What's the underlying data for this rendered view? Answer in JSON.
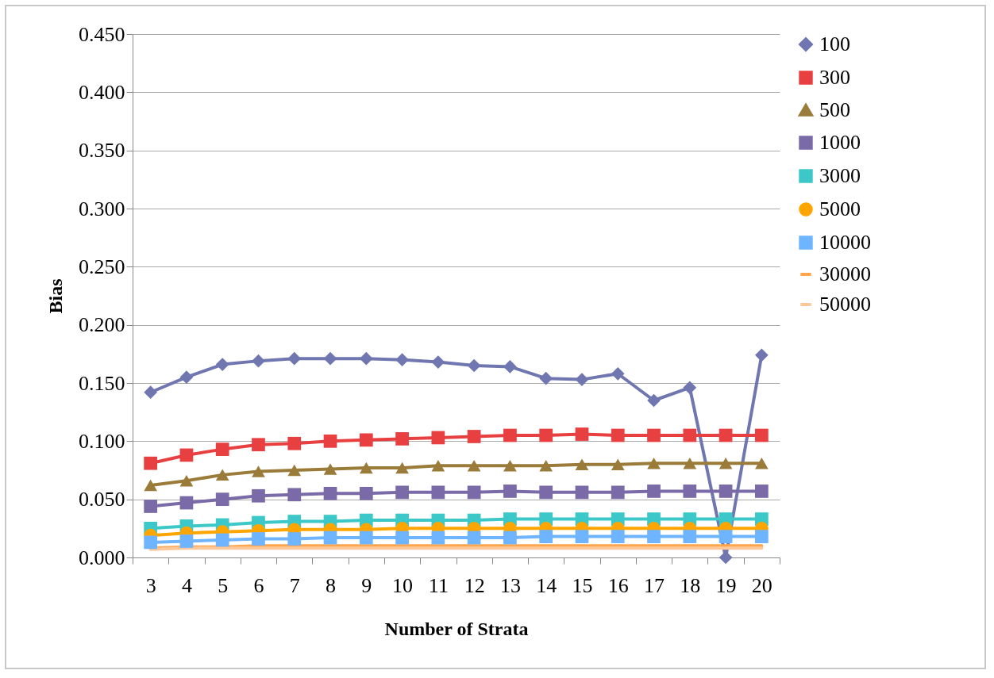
{
  "chart_data": {
    "type": "line",
    "xlabel": "Number of Strata",
    "ylabel": "Bias",
    "categories": [
      "3",
      "4",
      "5",
      "6",
      "7",
      "8",
      "9",
      "10",
      "11",
      "12",
      "13",
      "14",
      "15",
      "16",
      "17",
      "18",
      "19",
      "20"
    ],
    "ylim": [
      0,
      0.45
    ],
    "yticks": [
      {
        "value": 0,
        "label": "0.000"
      },
      {
        "value": 0.05,
        "label": "0.050"
      },
      {
        "value": 0.1,
        "label": "0.100"
      },
      {
        "value": 0.15,
        "label": "0.150"
      },
      {
        "value": 0.2,
        "label": "0.200"
      },
      {
        "value": 0.25,
        "label": "0.250"
      },
      {
        "value": 0.3,
        "label": "0.300"
      },
      {
        "value": 0.35,
        "label": "0.350"
      },
      {
        "value": 0.4,
        "label": "0.400"
      },
      {
        "value": 0.45,
        "label": "0.450"
      }
    ],
    "grid": "y",
    "legend": "right",
    "series": [
      {
        "name": "100",
        "color": "#6f76b0",
        "marker": "diamond",
        "values": [
          0.142,
          0.155,
          0.166,
          0.169,
          0.171,
          0.171,
          0.171,
          0.17,
          0.168,
          0.165,
          0.164,
          0.154,
          0.153,
          0.158,
          0.135,
          0.146,
          0.0,
          0.174
        ]
      },
      {
        "name": "300",
        "color": "#e84040",
        "marker": "square",
        "values": [
          0.081,
          0.088,
          0.093,
          0.097,
          0.098,
          0.1,
          0.101,
          0.102,
          0.103,
          0.104,
          0.105,
          0.105,
          0.106,
          0.105,
          0.105,
          0.105,
          0.105,
          0.105
        ]
      },
      {
        "name": "500",
        "color": "#9a7b3a",
        "marker": "triangle",
        "values": [
          0.062,
          0.066,
          0.071,
          0.074,
          0.075,
          0.076,
          0.077,
          0.077,
          0.079,
          0.079,
          0.079,
          0.079,
          0.08,
          0.08,
          0.081,
          0.081,
          0.081,
          0.081
        ]
      },
      {
        "name": "1000",
        "color": "#7a6aa8",
        "marker": "square",
        "values": [
          0.044,
          0.047,
          0.05,
          0.053,
          0.054,
          0.055,
          0.055,
          0.056,
          0.056,
          0.056,
          0.057,
          0.056,
          0.056,
          0.056,
          0.057,
          0.057,
          0.057,
          0.057
        ]
      },
      {
        "name": "3000",
        "color": "#3cc8c8",
        "marker": "square",
        "values": [
          0.025,
          0.027,
          0.028,
          0.03,
          0.031,
          0.031,
          0.032,
          0.032,
          0.032,
          0.032,
          0.033,
          0.033,
          0.033,
          0.033,
          0.033,
          0.033,
          0.033,
          0.033
        ]
      },
      {
        "name": "5000",
        "color": "#ffa500",
        "marker": "circle",
        "values": [
          0.019,
          0.021,
          0.022,
          0.023,
          0.024,
          0.024,
          0.024,
          0.025,
          0.025,
          0.025,
          0.025,
          0.025,
          0.025,
          0.025,
          0.025,
          0.025,
          0.025,
          0.025
        ]
      },
      {
        "name": "10000",
        "color": "#6eb4ff",
        "marker": "square",
        "values": [
          0.013,
          0.014,
          0.015,
          0.016,
          0.016,
          0.017,
          0.017,
          0.017,
          0.017,
          0.017,
          0.017,
          0.018,
          0.018,
          0.018,
          0.018,
          0.018,
          0.018,
          0.018
        ]
      },
      {
        "name": "30000",
        "color": "#ffa64d",
        "marker": "none",
        "values": [
          0.008,
          0.009,
          0.009,
          0.01,
          0.01,
          0.01,
          0.01,
          0.01,
          0.01,
          0.01,
          0.01,
          0.01,
          0.01,
          0.01,
          0.01,
          0.01,
          0.01,
          0.01
        ]
      },
      {
        "name": "50000",
        "color": "#ffc89a",
        "marker": "none",
        "values": [
          0.007,
          0.008,
          0.008,
          0.008,
          0.008,
          0.008,
          0.008,
          0.008,
          0.008,
          0.008,
          0.008,
          0.008,
          0.008,
          0.008,
          0.008,
          0.008,
          0.008,
          0.008
        ]
      }
    ]
  }
}
